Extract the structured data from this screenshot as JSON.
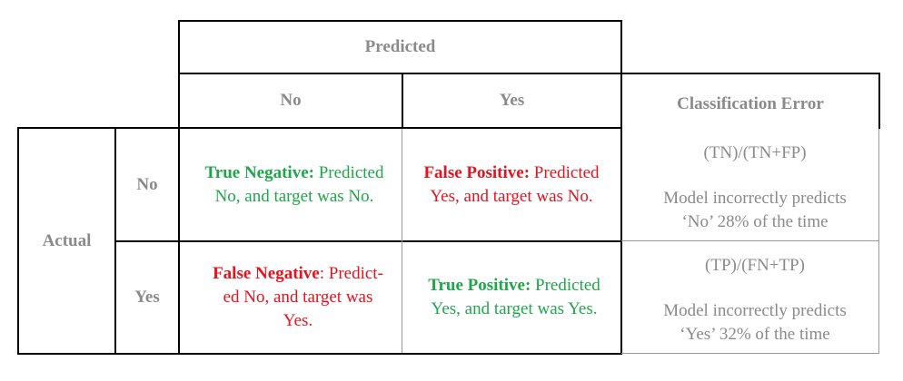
{
  "header": {
    "predicted": "Predicted",
    "no": "No",
    "yes": "Yes",
    "classification_error": "Classification Error",
    "actual": "Actual",
    "row_no": "No",
    "row_yes": "Yes"
  },
  "cells": {
    "tn": {
      "term": "True Negative:",
      "rest_line1": " Predicted",
      "line2": "No, and target was No."
    },
    "fp": {
      "term": "False Positive:",
      "rest_line1": " Predicted",
      "line2": "Yes, and target was No."
    },
    "fn": {
      "term": "False Negative",
      "rest_line1": ": Predict-",
      "line2": "ed No, and target was",
      "line3": "Yes."
    },
    "tp": {
      "term": "True Positive:",
      "rest_line1": " Predicted",
      "line2": "Yes, and target was Yes."
    }
  },
  "errors": {
    "no": {
      "formula": "(TN)/(TN+FP)",
      "line1": "Model incorrectly predicts",
      "line2": "‘No’  28% of the time"
    },
    "yes": {
      "formula": "(TP)/(FN+TP)",
      "line1": "Model incorrectly predicts",
      "line2": "‘Yes’  32% of the time"
    }
  },
  "colors": {
    "true_label": "#1fa64a",
    "false_label": "#e8121f",
    "header_gray": "#8a8a8a"
  }
}
